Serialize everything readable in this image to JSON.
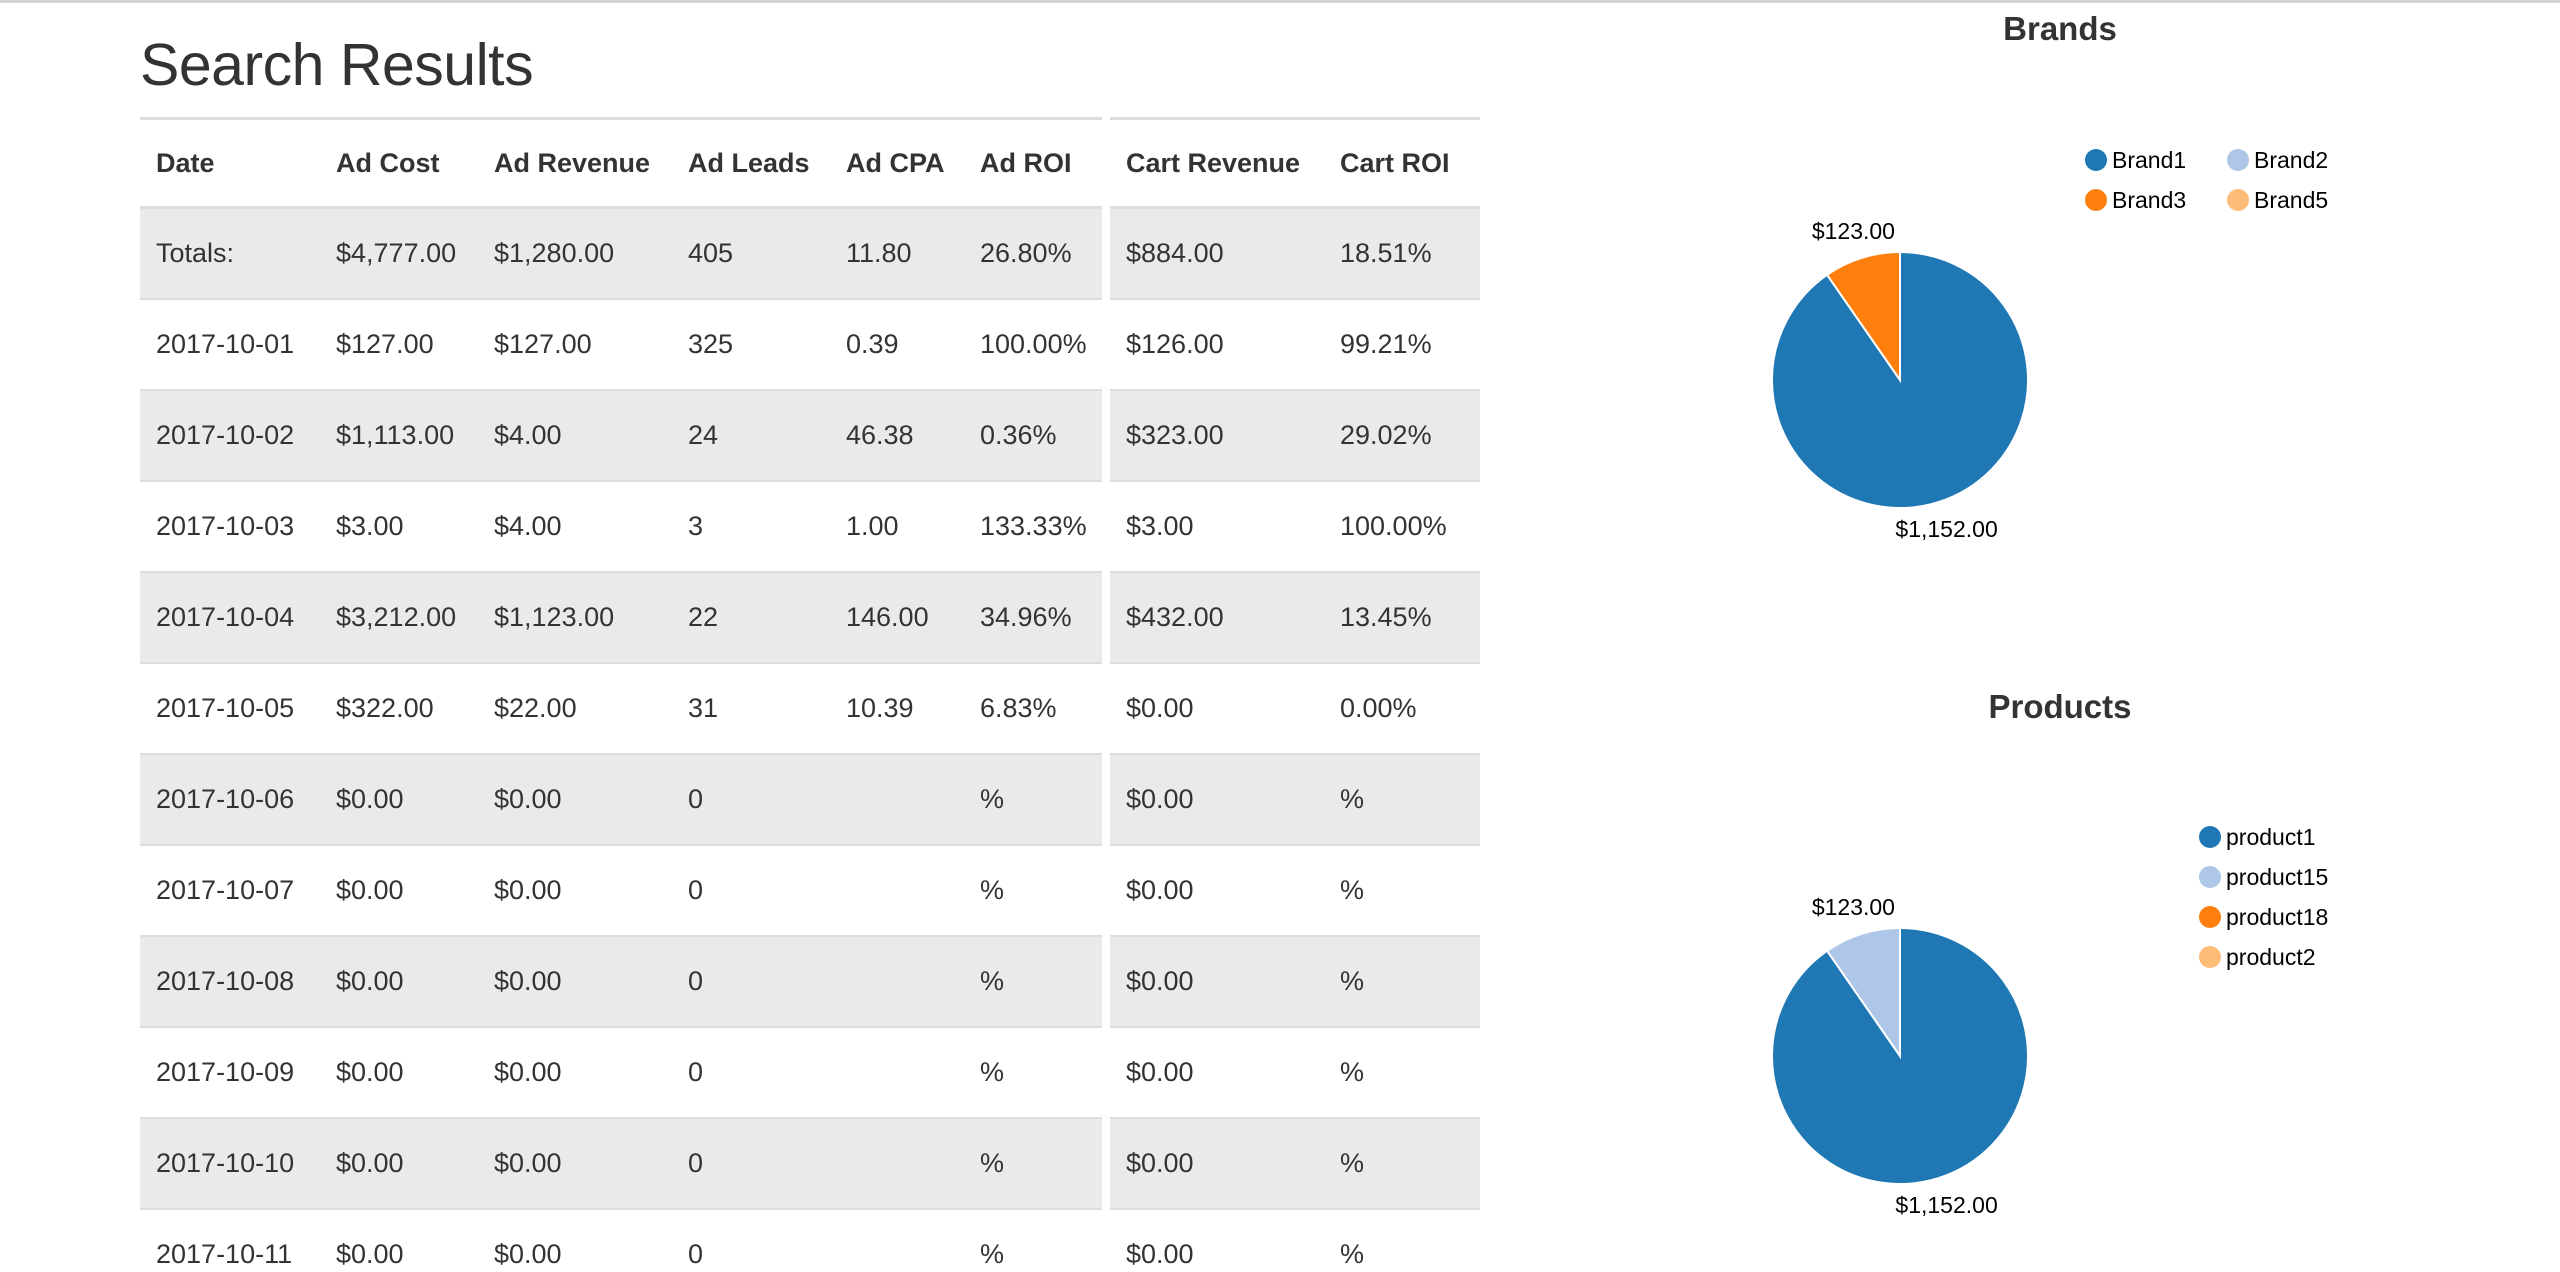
{
  "page": {
    "title": "Search Results"
  },
  "table": {
    "columns": [
      "Date",
      "Ad Cost",
      "Ad Revenue",
      "Ad Leads",
      "Ad CPA",
      "Ad ROI",
      "Cart Revenue",
      "Cart ROI"
    ],
    "rows": [
      [
        "Totals:",
        "$4,777.00",
        "$1,280.00",
        "405",
        "11.80",
        "26.80%",
        "$884.00",
        "18.51%"
      ],
      [
        "2017-10-01",
        "$127.00",
        "$127.00",
        "325",
        "0.39",
        "100.00%",
        "$126.00",
        "99.21%"
      ],
      [
        "2017-10-02",
        "$1,113.00",
        "$4.00",
        "24",
        "46.38",
        "0.36%",
        "$323.00",
        "29.02%"
      ],
      [
        "2017-10-03",
        "$3.00",
        "$4.00",
        "3",
        "1.00",
        "133.33%",
        "$3.00",
        "100.00%"
      ],
      [
        "2017-10-04",
        "$3,212.00",
        "$1,123.00",
        "22",
        "146.00",
        "34.96%",
        "$432.00",
        "13.45%"
      ],
      [
        "2017-10-05",
        "$322.00",
        "$22.00",
        "31",
        "10.39",
        "6.83%",
        "$0.00",
        "0.00%"
      ],
      [
        "2017-10-06",
        "$0.00",
        "$0.00",
        "0",
        "",
        "%",
        "$0.00",
        "%"
      ],
      [
        "2017-10-07",
        "$0.00",
        "$0.00",
        "0",
        "",
        "%",
        "$0.00",
        "%"
      ],
      [
        "2017-10-08",
        "$0.00",
        "$0.00",
        "0",
        "",
        "%",
        "$0.00",
        "%"
      ],
      [
        "2017-10-09",
        "$0.00",
        "$0.00",
        "0",
        "",
        "%",
        "$0.00",
        "%"
      ],
      [
        "2017-10-10",
        "$0.00",
        "$0.00",
        "0",
        "",
        "%",
        "$0.00",
        "%"
      ],
      [
        "2017-10-11",
        "$0.00",
        "$0.00",
        "0",
        "",
        "%",
        "$0.00",
        "%"
      ]
    ]
  },
  "chart_data": [
    {
      "type": "pie",
      "title": "Brands",
      "categories": [
        "Brand1",
        "Brand2",
        "Brand3",
        "Brand5"
      ],
      "values": [
        1152,
        0,
        123,
        0
      ],
      "slice_labels": [
        "$1,152.00",
        "",
        "$123.00",
        ""
      ],
      "colors": [
        "#1f77b4",
        "#aec7e8",
        "#ff7f0e",
        "#ffbb78"
      ],
      "legend_position": "top-right",
      "legend_columns": 2
    },
    {
      "type": "pie",
      "title": "Products",
      "categories": [
        "product1",
        "product15",
        "product18",
        "product2"
      ],
      "values": [
        1152,
        123,
        0,
        0
      ],
      "slice_labels": [
        "$1,152.00",
        "$123.00",
        "",
        ""
      ],
      "colors": [
        "#1f77b4",
        "#aec7e8",
        "#ff7f0e",
        "#ffbb78"
      ],
      "legend_position": "top-right",
      "legend_columns": 1
    }
  ]
}
